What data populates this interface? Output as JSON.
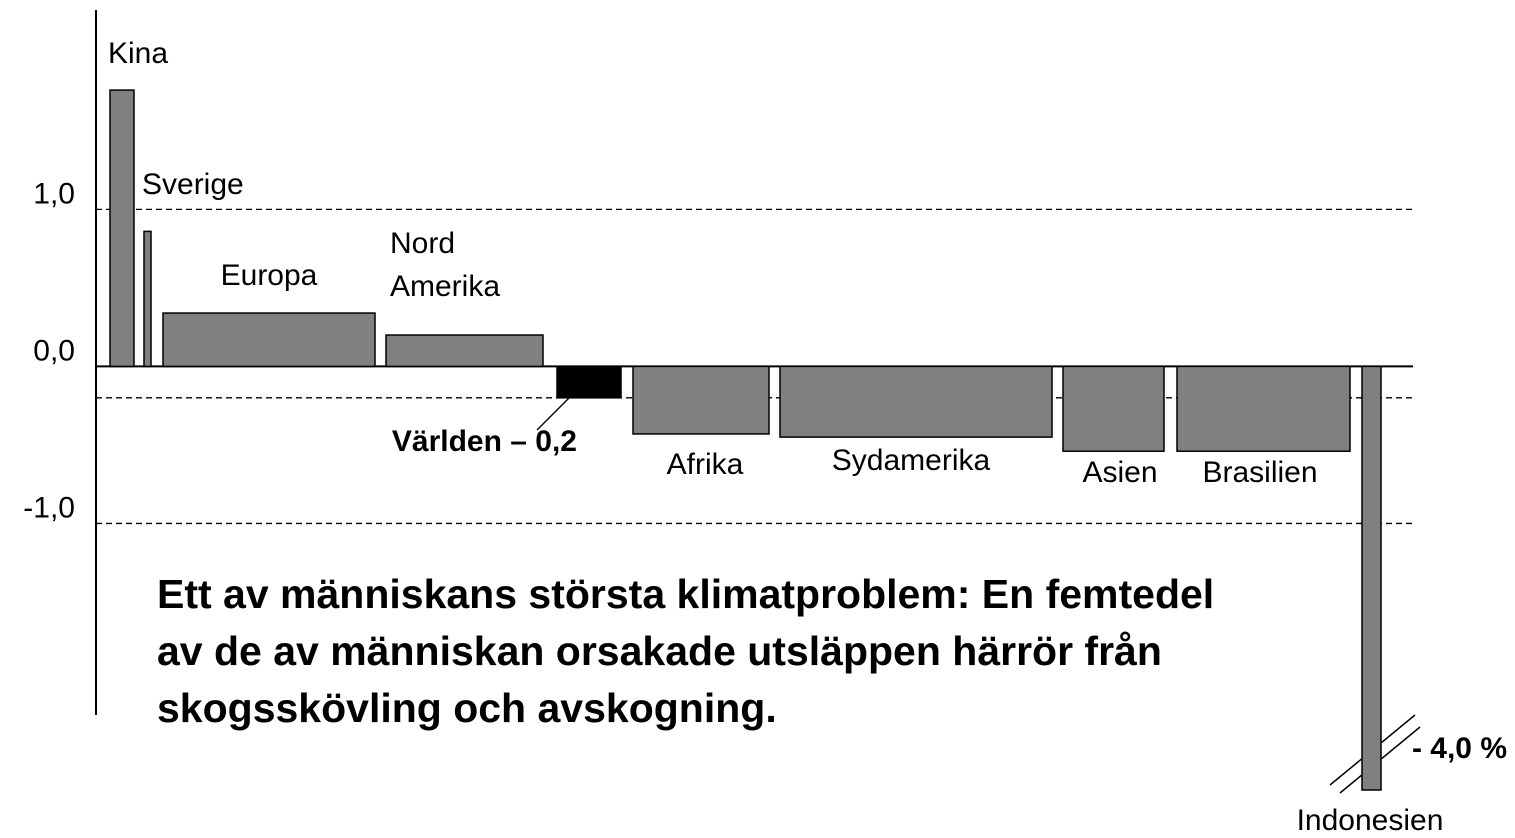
{
  "chart_data": {
    "type": "bar",
    "categories": [
      "Kina",
      "Sverige",
      "Europa",
      "Nord Amerika",
      "Världen",
      "Afrika",
      "Sydamerika",
      "Asien",
      "Brasilien",
      "Indonesien"
    ],
    "values": [
      1.76,
      0.86,
      0.34,
      0.2,
      -0.2,
      -0.43,
      -0.45,
      -0.54,
      -0.54,
      -4.0
    ],
    "value_labels": [
      null,
      null,
      null,
      null,
      "– 0,2",
      null,
      null,
      null,
      null,
      "- 4,0 %"
    ],
    "color": "#808080",
    "highlight_color": "#000000",
    "ylim": [
      -2.22,
      2.27
    ],
    "yticks": [
      {
        "value": 1,
        "label": "1,0"
      },
      {
        "value": 0,
        "label": "0,0"
      },
      {
        "value": -1,
        "label": "-1,0"
      }
    ],
    "grid": true,
    "annotation": "Ett av människans största klimatproblem: En femtedel av de av människan orsakade utsläppen härrör från skogsskövling och avskogning."
  }
}
